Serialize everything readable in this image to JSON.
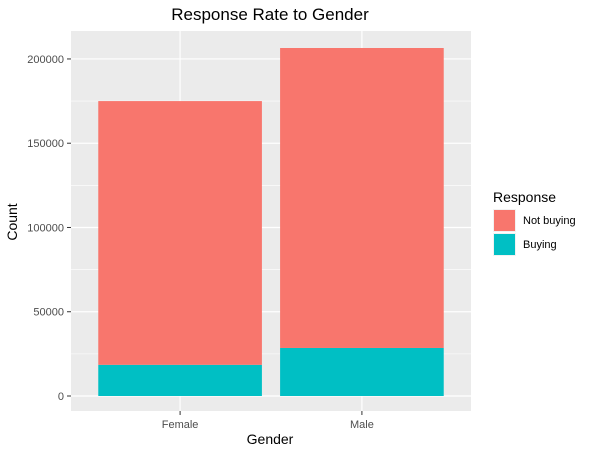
{
  "chart_data": {
    "type": "bar",
    "stacked": true,
    "title": "Response Rate to Gender",
    "xlabel": "Gender",
    "ylabel": "Count",
    "categories": [
      "Female",
      "Male"
    ],
    "series": [
      {
        "name": "Not buying",
        "color": "#F8766D",
        "values": [
          156500,
          178000
        ]
      },
      {
        "name": "Buying",
        "color": "#00BFC4",
        "values": [
          18500,
          28500
        ]
      }
    ],
    "ylim": [
      0,
      206500
    ],
    "yticks": [
      0,
      50000,
      100000,
      150000,
      200000
    ],
    "ytick_labels": [
      "0",
      "50000",
      "100000",
      "150000",
      "200000"
    ],
    "legend_title": "Response",
    "legend_position": "right",
    "grid": true,
    "panel_background": "#EBEBEB",
    "grid_color": "#FFFFFF"
  }
}
